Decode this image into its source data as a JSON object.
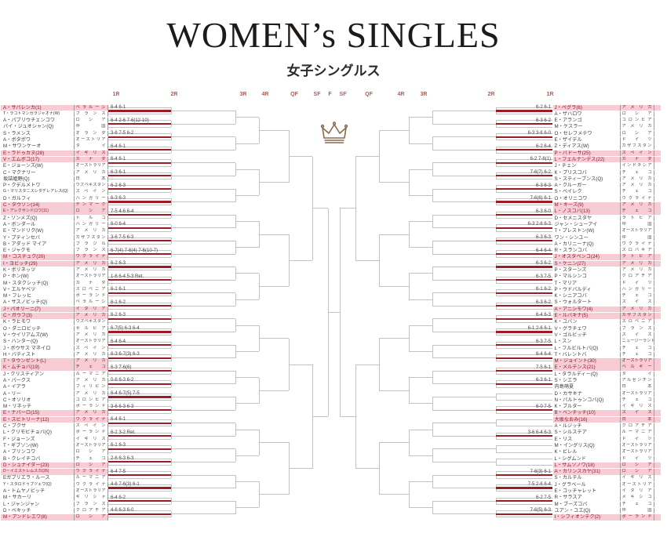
{
  "title": "WOMEN’s SINGLES",
  "subtitle": "女子シングルス",
  "round_labels": [
    "1R",
    "2R",
    "3R",
    "4R",
    "QF",
    "SF",
    "F",
    "SF",
    "QF",
    "4R",
    "3R",
    "2R",
    "1R"
  ],
  "colors": {
    "result_line": "#9c1b24",
    "seed_highlight": "#f7ccd4",
    "seed_text": "#8c1c2c",
    "round_label": "#b45a5c",
    "crown": "#8a6a4d",
    "bracket_line": "#c2c2c2"
  },
  "crown_icon": "crown",
  "left": {
    "players": [
      {
        "name": "A・サバレンカ(1)",
        "country": "ベラルーシ",
        "seed": true
      },
      {
        "name": "T・ラコトマンガラジャオナ(W)",
        "country": "フランス",
        "seed": false
      },
      {
        "name": "A・パブリウチェンコワ",
        "country": "ロシア",
        "seed": false
      },
      {
        "name": "バイ・ジュオシャン(Q)",
        "country": "中国",
        "seed": false
      },
      {
        "name": "S・ラメンス",
        "country": "オランダ",
        "seed": false
      },
      {
        "name": "A・ボタポワ",
        "country": "オーストリア",
        "seed": false
      },
      {
        "name": "M・サワンケーオ",
        "country": "タイ",
        "seed": false
      },
      {
        "name": "E・ラドゥカヌ(28)",
        "country": "イギリス",
        "seed": true
      },
      {
        "name": "V・エムボコ(17)",
        "country": "カナダ",
        "seed": true
      },
      {
        "name": "E・ジョーンズ(W)",
        "country": "オーストラリア",
        "seed": false
      },
      {
        "name": "C・マクナリー",
        "country": "アメリカ",
        "seed": false
      },
      {
        "name": "坂詰姫野(Q)",
        "country": "日本",
        "seed": false
      },
      {
        "name": "P・クデルメトワ",
        "country": "ウズベキスタン",
        "seed": false
      },
      {
        "name": "G・マリスタニスレタデレアレス(Q)",
        "country": "スペイン",
        "seed": false
      },
      {
        "name": "D・ガルフィ",
        "country": "ハンガリー",
        "seed": false
      },
      {
        "name": "C・タウソン(14)",
        "country": "デンマーク",
        "seed": true
      },
      {
        "name": "E・アレクサンドロワ(11)",
        "country": "ロシア",
        "seed": true
      },
      {
        "name": "Z・ソンメズ(Q)",
        "country": "トルコ",
        "seed": false
      },
      {
        "name": "A・ボンダール",
        "country": "ハンガリー",
        "seed": false
      },
      {
        "name": "E・マンドリク(W)",
        "country": "アメリカ",
        "seed": false
      },
      {
        "name": "Y・プティンセバ",
        "country": "カザフスタン",
        "seed": false
      },
      {
        "name": "B・アダッド マイア",
        "country": "ブラジル",
        "seed": false
      },
      {
        "name": "E・ジャクモ",
        "country": "フランス",
        "seed": false
      },
      {
        "name": "M・コスチュク(20)",
        "country": "ウクライナ",
        "seed": true
      },
      {
        "name": "I・ヨビッチ(29)",
        "country": "アメリカ",
        "seed": true
      },
      {
        "name": "K・ボリネッツ",
        "country": "アメリカ",
        "seed": false
      },
      {
        "name": "P・ホン(W)",
        "country": "オーストラリア",
        "seed": false
      },
      {
        "name": "M・スタクシッチ(Q)",
        "country": "カナダ",
        "seed": false
      },
      {
        "name": "V・エルヤベツ",
        "country": "スロベニア",
        "seed": false
      },
      {
        "name": "M・フレッヒ",
        "country": "ポーランド",
        "seed": false
      },
      {
        "name": "A・サスノビッチ(Q)",
        "country": "ベラルーシ",
        "seed": false
      },
      {
        "name": "J・パオリーニ(7)",
        "country": "イタリア",
        "seed": true
      },
      {
        "name": "C・ガウフ(3)",
        "country": "アメリカ",
        "seed": true
      },
      {
        "name": "K・ラヒモワ",
        "country": "ウズベキスタン",
        "seed": false
      },
      {
        "name": "O・ダニロビッチ",
        "country": "セルビア",
        "seed": false
      },
      {
        "name": "V・ウイリアムズ(W)",
        "country": "アメリカ",
        "seed": false
      },
      {
        "name": "S・ハンター(Q)",
        "country": "オーストラリア",
        "seed": false
      },
      {
        "name": "J・ボウサス マネイロ",
        "country": "スペイン",
        "seed": false
      },
      {
        "name": "H・バティスト",
        "country": "アメリカ",
        "seed": false
      },
      {
        "name": "T・タウンゼント(L)",
        "country": "アメリカ",
        "seed": true
      },
      {
        "name": "K・ムチョバ(19)",
        "country": "チェコ",
        "seed": true
      },
      {
        "name": "J・クリスティアン",
        "country": "ルーマニア",
        "seed": false
      },
      {
        "name": "A・パークス",
        "country": "アメリカ",
        "seed": false
      },
      {
        "name": "A・イアラ",
        "country": "フィリピン",
        "seed": false
      },
      {
        "name": "A・リー",
        "country": "アメリカ",
        "seed": false
      },
      {
        "name": "C・オソリオ",
        "country": "コロンビア",
        "seed": false
      },
      {
        "name": "M・リネッテ",
        "country": "ポーランド",
        "seed": false
      },
      {
        "name": "E・ナバーロ(15)",
        "country": "アメリカ",
        "seed": true
      },
      {
        "name": "E・スビトリーナ(12)",
        "country": "ウクライナ",
        "seed": true
      },
      {
        "name": "C・ブクサ",
        "country": "スペイン",
        "seed": false
      },
      {
        "name": "L・クリモビチョバ(Q)",
        "country": "ポーランド",
        "seed": false
      },
      {
        "name": "F・ジョーンズ",
        "country": "イギリス",
        "seed": false
      },
      {
        "name": "T・ギブソン(W)",
        "country": "オーストラリア",
        "seed": false
      },
      {
        "name": "A・ブリンコワ",
        "country": "ロシア",
        "seed": false
      },
      {
        "name": "B・クレイチコバ",
        "country": "チェコ",
        "seed": false
      },
      {
        "name": "D・シュナイダー(23)",
        "country": "ロシア",
        "seed": true
      },
      {
        "name": "D・イエストレムスカ(26)",
        "country": "ウクライナ",
        "seed": true
      },
      {
        "name": "Eガブリエラ・ルース",
        "country": "ルーマニア",
        "seed": false
      },
      {
        "name": "Y・スタロドゥブツェワ(Q)",
        "country": "ウクライナ",
        "seed": false
      },
      {
        "name": "A・トムヤノビッチ",
        "country": "オーストラリア",
        "seed": false
      },
      {
        "name": "M・サカーリ",
        "country": "ギリシャ",
        "seed": false
      },
      {
        "name": "L・ジャンジャン",
        "country": "フランス",
        "seed": false
      },
      {
        "name": "D・ベキッチ",
        "country": "クロアチア",
        "seed": false
      },
      {
        "name": "M・アンドレエワ(8)",
        "country": "ロシア",
        "seed": true
      }
    ],
    "scores": [
      "6-4 6-1",
      "6-4 2-6 7-6(12-10)",
      "3-6 7-5 6-2",
      "6-4 6-1",
      "6-4 6-1",
      "6-3 6-1",
      "6-2 6-3",
      "6-3 6-3",
      "7-5 4-6 6-4",
      "6-0 6-4",
      "3-6 7-5 6-3",
      "6-7(4) 7-6(4) 7-6(10-7)",
      "6-2 6-3",
      "1-6 6-4 5-3 Ret.",
      "6-1 6-1",
      "6-1 6-2",
      "6-2 6-3",
      "6-7(5) 6-3 6-4",
      "6-4 6-4",
      "6-3 6-7(3) 6-3",
      "6-3 7-6(6)",
      "0-6 6-3 6-2",
      "6-4 6-7(5) 7-5",
      "3-6 6-3 6-3",
      "6-4 6-1",
      "6-2 3-2 Ret.",
      "6-1 6-3",
      "2-6 6-3 6-3",
      "6-4 7-5",
      "4-6 7-6(3) 6-1",
      "6-4 6-2",
      "4-6 6-3 6-0"
    ]
  },
  "right": {
    "players": [
      {
        "name": "J・ペグラ(6)",
        "country": "アメリカ",
        "seed": true
      },
      {
        "name": "A・ザハロワ",
        "country": "ロシア",
        "seed": false
      },
      {
        "name": "E・アランゴ",
        "country": "コロンビア",
        "seed": false
      },
      {
        "name": "M・ケスラー",
        "country": "アメリカ",
        "seed": false
      },
      {
        "name": "O・セレフメテワ",
        "country": "ロシア",
        "seed": false
      },
      {
        "name": "E・ザイデル",
        "country": "ドイツ",
        "seed": false
      },
      {
        "name": "Z・ディアス(W)",
        "country": "カザフスタン",
        "seed": false
      },
      {
        "name": "P・バドーサ(25)",
        "country": "スペイン",
        "seed": true
      },
      {
        "name": "L・フェルナンデス(22)",
        "country": "カナダ",
        "seed": true
      },
      {
        "name": "J・チェン",
        "country": "インドネシア",
        "seed": false
      },
      {
        "name": "K・プリスコバ",
        "country": "チェコ",
        "seed": false
      },
      {
        "name": "S・スティーブンス(Q)",
        "country": "アメリカ",
        "seed": false
      },
      {
        "name": "A・クルーガー",
        "country": "アメリカ",
        "seed": false
      },
      {
        "name": "S・ベイレク",
        "country": "チェコ",
        "seed": false
      },
      {
        "name": "O・オリニコワ",
        "country": "ウクライナ",
        "seed": false
      },
      {
        "name": "M・キーズ(9)",
        "country": "アメリカ",
        "seed": true
      },
      {
        "name": "L・ノスコバ(13)",
        "country": "チェコ",
        "seed": true
      },
      {
        "name": "D・セメニスタヤ",
        "country": "ラトビア",
        "seed": false
      },
      {
        "name": "ジャン・シューアイ",
        "country": "中国",
        "seed": false
      },
      {
        "name": "T・プレストン(W)",
        "country": "オーストラリア",
        "seed": false
      },
      {
        "name": "ワン・シンユー",
        "country": "中国",
        "seed": false
      },
      {
        "name": "A・カリニーナ(Q)",
        "country": "ウクライナ",
        "seed": false
      },
      {
        "name": "R・スランコバ",
        "country": "スロバキア",
        "seed": false
      },
      {
        "name": "J・オスタペンコ(24)",
        "country": "ラトビア",
        "seed": true
      },
      {
        "name": "S・ケニン(27)",
        "country": "アメリカ",
        "seed": true
      },
      {
        "name": "P・スターンズ",
        "country": "アメリカ",
        "seed": false
      },
      {
        "name": "P・マルシンコ",
        "country": "クロアチア",
        "seed": false
      },
      {
        "name": "T・マリア",
        "country": "ドイツ",
        "seed": false
      },
      {
        "name": "P・ウドバルディ",
        "country": "ハンガリー",
        "seed": false
      },
      {
        "name": "K・シニアコバ",
        "country": "チェコ",
        "seed": false
      },
      {
        "name": "S・ウォルタート",
        "country": "スイス",
        "seed": false
      },
      {
        "name": "A・アニシモワ(4)",
        "country": "アメリカ",
        "seed": true
      },
      {
        "name": "E・ルバキナ(5)",
        "country": "カザフスタン",
        "seed": true
      },
      {
        "name": "K・ユバン",
        "country": "スロベニア",
        "seed": false
      },
      {
        "name": "V・グラチェワ",
        "country": "フランス",
        "seed": false
      },
      {
        "name": "V・ゴルビッチ",
        "country": "スイス",
        "seed": false
      },
      {
        "name": "L・スン",
        "country": "ニュージーランド",
        "seed": false
      },
      {
        "name": "L・フルビルトバ(Q)",
        "country": "チェコ",
        "seed": false
      },
      {
        "name": "T・バレントバ",
        "country": "チェコ",
        "seed": false
      },
      {
        "name": "M・ジョイント(30)",
        "country": "オーストラリア",
        "seed": true
      },
      {
        "name": "E・メルテンス(21)",
        "country": "ベルギー",
        "seed": true
      },
      {
        "name": "L・タラルディー(Q)",
        "country": "タイ",
        "seed": false
      },
      {
        "name": "S・シエラ",
        "country": "アルゼンチン",
        "seed": false
      },
      {
        "name": "内島萌夏",
        "country": "日本",
        "seed": false
      },
      {
        "name": "D・カサキナ",
        "country": "オーストラリア",
        "seed": false
      },
      {
        "name": "N・バルトゥンコバ(Q)",
        "country": "チェコ",
        "seed": false
      },
      {
        "name": "K・ブルター",
        "country": "イギリス",
        "seed": false
      },
      {
        "name": "B・ベンチッチ(10)",
        "country": "スイス",
        "seed": true
      },
      {
        "name": "大坂なおみ(16)",
        "country": "日本",
        "seed": true
      },
      {
        "name": "A・ルジッチ",
        "country": "クロアチア",
        "seed": false
      },
      {
        "name": "S・シルステア",
        "country": "ルーマニア",
        "seed": false
      },
      {
        "name": "E・リス",
        "country": "ドイツ",
        "seed": false
      },
      {
        "name": "M・イングリス(Q)",
        "country": "オーストラリア",
        "seed": false
      },
      {
        "name": "K・ビレル",
        "country": "オーストラリア",
        "seed": false
      },
      {
        "name": "L・シグムンド",
        "country": "ドイツ",
        "seed": false
      },
      {
        "name": "L・サムソノワ(18)",
        "country": "ロシア",
        "seed": true
      },
      {
        "name": "A・カリンスカヤ(31)",
        "country": "ロシア",
        "seed": true
      },
      {
        "name": "S・カルテル",
        "country": "イギリス",
        "seed": false
      },
      {
        "name": "J・グラベール",
        "country": "オーストリア",
        "seed": false
      },
      {
        "name": "E・コッチャレット",
        "country": "イタリア",
        "seed": false
      },
      {
        "name": "R・サラスア",
        "country": "メキシコ",
        "seed": false
      },
      {
        "name": "M・ブーズコバ",
        "country": "チェコ",
        "seed": false
      },
      {
        "name": "ユアン・ユエ(Q)",
        "country": "中国",
        "seed": false
      },
      {
        "name": "I・シフィオンテク(2)",
        "country": "ポーランド",
        "seed": true
      }
    ],
    "scores": [
      "6-2 6-1",
      "6-3 6-2",
      "6-3 3-6 6-0",
      "6-2 6-4",
      "6-2 7-6(1)",
      "7-6(7) 6-2",
      "6-3 6-3",
      "7-6(6) 6-1",
      "6-3 6-0",
      "6-3 2-6 6-3",
      "6-3 6-3",
      "6-4 6-4",
      "6-3 6-2",
      "6-3 7-5",
      "6-1 6-2",
      "6-3 6-2",
      "6-4 6-3",
      "6-1 2-6 6-1",
      "6-3 7-5",
      "6-4 6-4",
      "7-5 6-1",
      "6-3 6-1",
      "",
      "6-0 7-5",
      "",
      "3-6 6-4 6-3",
      "",
      "",
      "7-6(3) 6-1",
      "7-5 2-6 6-4",
      "6-2 7-5",
      "7-6(5) 6-3"
    ]
  }
}
